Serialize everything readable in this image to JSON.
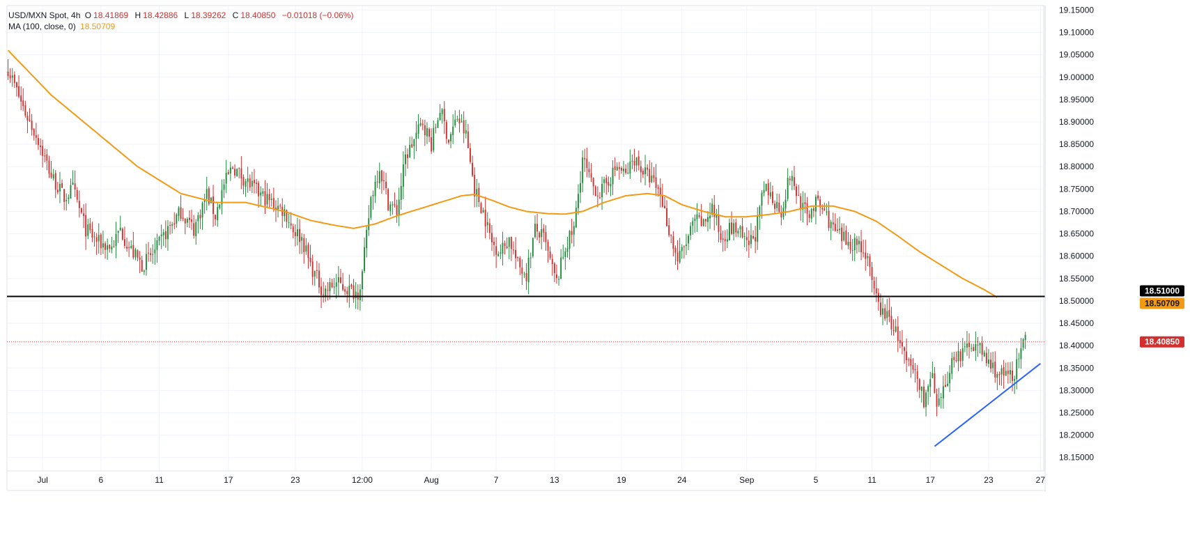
{
  "header": {
    "symbol": "USD/MXN Spot, 4h",
    "o_label": "O",
    "o_value": "18.41869",
    "h_label": "H",
    "h_value": "18.42886",
    "l_label": "L",
    "l_value": "18.39262",
    "c_label": "C",
    "c_value": "18.40850",
    "change": "−0.01018 (−0.06%)",
    "ma_label": "MA (100, close, 0)",
    "ma_value": "18.50709"
  },
  "colors": {
    "up": "#26a69a",
    "up_body": "#1e8c3a",
    "down": "#d32f2f",
    "ma": "#f29a14",
    "support": "#000000",
    "trend": "#2962ff",
    "price_tag": "#d32f2f",
    "ma_tag": "#f29a14"
  },
  "chart_data": {
    "type": "candlestick",
    "timeframe": "4h",
    "ylim": [
      18.12,
      19.16
    ],
    "y_ticks": [
      "19.15000",
      "19.10000",
      "19.05000",
      "19.00000",
      "18.95000",
      "18.90000",
      "18.85000",
      "18.80000",
      "18.75000",
      "18.70000",
      "18.65000",
      "18.60000",
      "18.55000",
      "18.50000",
      "18.45000",
      "18.40000",
      "18.35000",
      "18.30000",
      "18.25000",
      "18.20000",
      "18.15000"
    ],
    "x_ticks": [
      "Jul",
      "6",
      "11",
      "17",
      "23",
      "12:00",
      "Aug",
      "7",
      "13",
      "19",
      "24",
      "Sep",
      "5",
      "11",
      "17",
      "23",
      "27"
    ],
    "x_tick_index": [
      16,
      43,
      70,
      102,
      133,
      164,
      196,
      226,
      253,
      284,
      312,
      342,
      374,
      400,
      427,
      454,
      478
    ],
    "horizontal_line": {
      "value": 18.51,
      "label": "18.51000"
    },
    "last_price": {
      "value": 18.4085,
      "label": "18.40850"
    },
    "ma_last": {
      "value": 18.50709,
      "label": "18.50709"
    },
    "trendline": {
      "from": {
        "bar": 429,
        "price": 18.175
      },
      "to": {
        "bar": 478,
        "price": 18.36
      }
    },
    "anchors": [
      [
        0,
        19.02
      ],
      [
        8,
        18.92
      ],
      [
        14,
        18.86
      ],
      [
        20,
        18.78
      ],
      [
        26,
        18.73
      ],
      [
        30,
        18.75
      ],
      [
        36,
        18.66
      ],
      [
        42,
        18.63
      ],
      [
        48,
        18.62
      ],
      [
        52,
        18.66
      ],
      [
        56,
        18.62
      ],
      [
        62,
        18.58
      ],
      [
        68,
        18.61
      ],
      [
        74,
        18.66
      ],
      [
        80,
        18.7
      ],
      [
        86,
        18.66
      ],
      [
        92,
        18.74
      ],
      [
        96,
        18.69
      ],
      [
        100,
        18.76
      ],
      [
        104,
        18.8
      ],
      [
        110,
        18.77
      ],
      [
        116,
        18.74
      ],
      [
        122,
        18.72
      ],
      [
        128,
        18.7
      ],
      [
        132,
        18.66
      ],
      [
        136,
        18.64
      ],
      [
        140,
        18.58
      ],
      [
        146,
        18.52
      ],
      [
        152,
        18.54
      ],
      [
        156,
        18.53
      ],
      [
        160,
        18.52
      ],
      [
        162,
        18.52
      ],
      [
        164,
        18.56
      ],
      [
        168,
        18.73
      ],
      [
        172,
        18.8
      ],
      [
        176,
        18.72
      ],
      [
        180,
        18.7
      ],
      [
        184,
        18.82
      ],
      [
        188,
        18.86
      ],
      [
        192,
        18.9
      ],
      [
        196,
        18.85
      ],
      [
        200,
        18.93
      ],
      [
        204,
        18.86
      ],
      [
        208,
        18.91
      ],
      [
        212,
        18.87
      ],
      [
        216,
        18.75
      ],
      [
        220,
        18.7
      ],
      [
        224,
        18.63
      ],
      [
        228,
        18.61
      ],
      [
        232,
        18.64
      ],
      [
        236,
        18.58
      ],
      [
        240,
        18.56
      ],
      [
        244,
        18.66
      ],
      [
        248,
        18.64
      ],
      [
        252,
        18.57
      ],
      [
        254,
        18.54
      ],
      [
        258,
        18.62
      ],
      [
        262,
        18.66
      ],
      [
        266,
        18.82
      ],
      [
        270,
        18.76
      ],
      [
        274,
        18.74
      ],
      [
        278,
        18.77
      ],
      [
        282,
        18.8
      ],
      [
        286,
        18.78
      ],
      [
        290,
        18.82
      ],
      [
        294,
        18.79
      ],
      [
        298,
        18.77
      ],
      [
        302,
        18.74
      ],
      [
        306,
        18.66
      ],
      [
        310,
        18.59
      ],
      [
        314,
        18.63
      ],
      [
        318,
        18.68
      ],
      [
        322,
        18.67
      ],
      [
        326,
        18.71
      ],
      [
        330,
        18.64
      ],
      [
        334,
        18.66
      ],
      [
        338,
        18.66
      ],
      [
        342,
        18.62
      ],
      [
        346,
        18.65
      ],
      [
        350,
        18.75
      ],
      [
        354,
        18.73
      ],
      [
        358,
        18.7
      ],
      [
        362,
        18.78
      ],
      [
        366,
        18.73
      ],
      [
        370,
        18.69
      ],
      [
        374,
        18.72
      ],
      [
        378,
        18.7
      ],
      [
        382,
        18.66
      ],
      [
        386,
        18.64
      ],
      [
        390,
        18.63
      ],
      [
        394,
        18.63
      ],
      [
        396,
        18.61
      ],
      [
        398,
        18.6
      ],
      [
        400,
        18.53
      ],
      [
        404,
        18.48
      ],
      [
        408,
        18.46
      ],
      [
        412,
        18.42
      ],
      [
        416,
        18.36
      ],
      [
        420,
        18.34
      ],
      [
        424,
        18.28
      ],
      [
        428,
        18.33
      ],
      [
        430,
        18.25
      ],
      [
        434,
        18.31
      ],
      [
        438,
        18.38
      ],
      [
        442,
        18.38
      ],
      [
        446,
        18.41
      ],
      [
        450,
        18.39
      ],
      [
        454,
        18.36
      ],
      [
        458,
        18.34
      ],
      [
        462,
        18.33
      ],
      [
        466,
        18.34
      ],
      [
        470,
        18.4
      ],
      [
        471,
        18.41
      ]
    ],
    "ma_anchors": [
      [
        0,
        19.06
      ],
      [
        20,
        18.96
      ],
      [
        40,
        18.88
      ],
      [
        60,
        18.8
      ],
      [
        80,
        18.74
      ],
      [
        96,
        18.72
      ],
      [
        110,
        18.72
      ],
      [
        128,
        18.7
      ],
      [
        140,
        18.68
      ],
      [
        150,
        18.67
      ],
      [
        160,
        18.662
      ],
      [
        170,
        18.672
      ],
      [
        180,
        18.69
      ],
      [
        190,
        18.705
      ],
      [
        200,
        18.72
      ],
      [
        210,
        18.735
      ],
      [
        216,
        18.738
      ],
      [
        224,
        18.725
      ],
      [
        232,
        18.71
      ],
      [
        240,
        18.7
      ],
      [
        250,
        18.695
      ],
      [
        258,
        18.694
      ],
      [
        266,
        18.7
      ],
      [
        276,
        18.72
      ],
      [
        286,
        18.735
      ],
      [
        296,
        18.74
      ],
      [
        304,
        18.735
      ],
      [
        312,
        18.715
      ],
      [
        322,
        18.7
      ],
      [
        332,
        18.688
      ],
      [
        342,
        18.688
      ],
      [
        352,
        18.693
      ],
      [
        362,
        18.7
      ],
      [
        372,
        18.712
      ],
      [
        382,
        18.712
      ],
      [
        392,
        18.7
      ],
      [
        402,
        18.678
      ],
      [
        412,
        18.645
      ],
      [
        422,
        18.61
      ],
      [
        432,
        18.58
      ],
      [
        442,
        18.55
      ],
      [
        452,
        18.525
      ],
      [
        458,
        18.508
      ]
    ]
  }
}
